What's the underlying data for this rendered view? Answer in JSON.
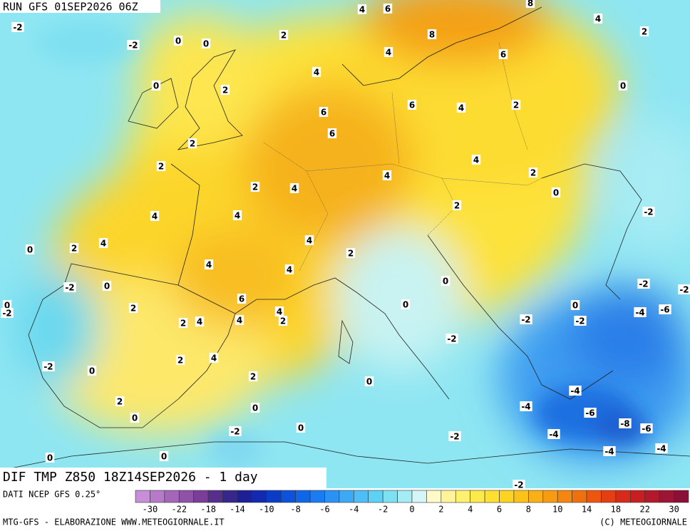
{
  "header": {
    "run": "RUN GFS 01SEP2026 06Z",
    "title": "DIF TMP Z850 18Z14SEP2026 - 1 day"
  },
  "footer": {
    "source": "DATI NCEP GFS 0.25°",
    "credits": "MTG-GFS - ELABORAZIONE WWW.METEOGIORNALE.IT",
    "copyright": "(C) METEOGIORNALE"
  },
  "colorbar": {
    "colors": [
      "#c88fd8",
      "#b67ac8",
      "#a366b8",
      "#8f52a8",
      "#7a3e98",
      "#552e8e",
      "#36288a",
      "#1d1f96",
      "#1229b0",
      "#0a3cc8",
      "#0d52dc",
      "#1066e8",
      "#1a7cf0",
      "#2a92f4",
      "#3ca8f6",
      "#4ebef6",
      "#5ed2f4",
      "#7fe0f2",
      "#a6ecf4",
      "#d4f6f6",
      "#fffbc8",
      "#fff49a",
      "#fff070",
      "#fee94a",
      "#fde030",
      "#fcd322",
      "#fbc31a",
      "#f9b016",
      "#f79c12",
      "#f5860f",
      "#f1700e",
      "#ec560f",
      "#e43e12",
      "#d82a18",
      "#c81e22",
      "#b4182c",
      "#9e1434",
      "#8a1038"
    ],
    "labels": [
      -30,
      -22,
      -18,
      -14,
      -10,
      -8,
      -6,
      -4,
      -2,
      0,
      2,
      4,
      6,
      8,
      10,
      14,
      18,
      22,
      30
    ]
  },
  "contour_labels": [
    -2,
    -2,
    0,
    0,
    0,
    2,
    4,
    6,
    8,
    8,
    4,
    4,
    2,
    6,
    4,
    2,
    6,
    6,
    6,
    4,
    2,
    0,
    2,
    2,
    2,
    4,
    4,
    4,
    2,
    0,
    -2,
    4,
    4,
    2,
    0,
    2,
    4,
    4,
    2,
    4,
    4,
    0,
    -2,
    0,
    0,
    -2,
    -2,
    -2,
    2,
    6,
    4,
    2,
    0,
    0,
    -4,
    -6,
    2,
    4,
    4,
    -2,
    -2,
    -2,
    4,
    2,
    -2,
    0,
    2,
    0,
    -4,
    2,
    -4,
    0,
    -6,
    0,
    -8,
    -6,
    0,
    -2,
    -2,
    -4,
    -4,
    -4,
    0,
    0,
    -2
  ]
}
